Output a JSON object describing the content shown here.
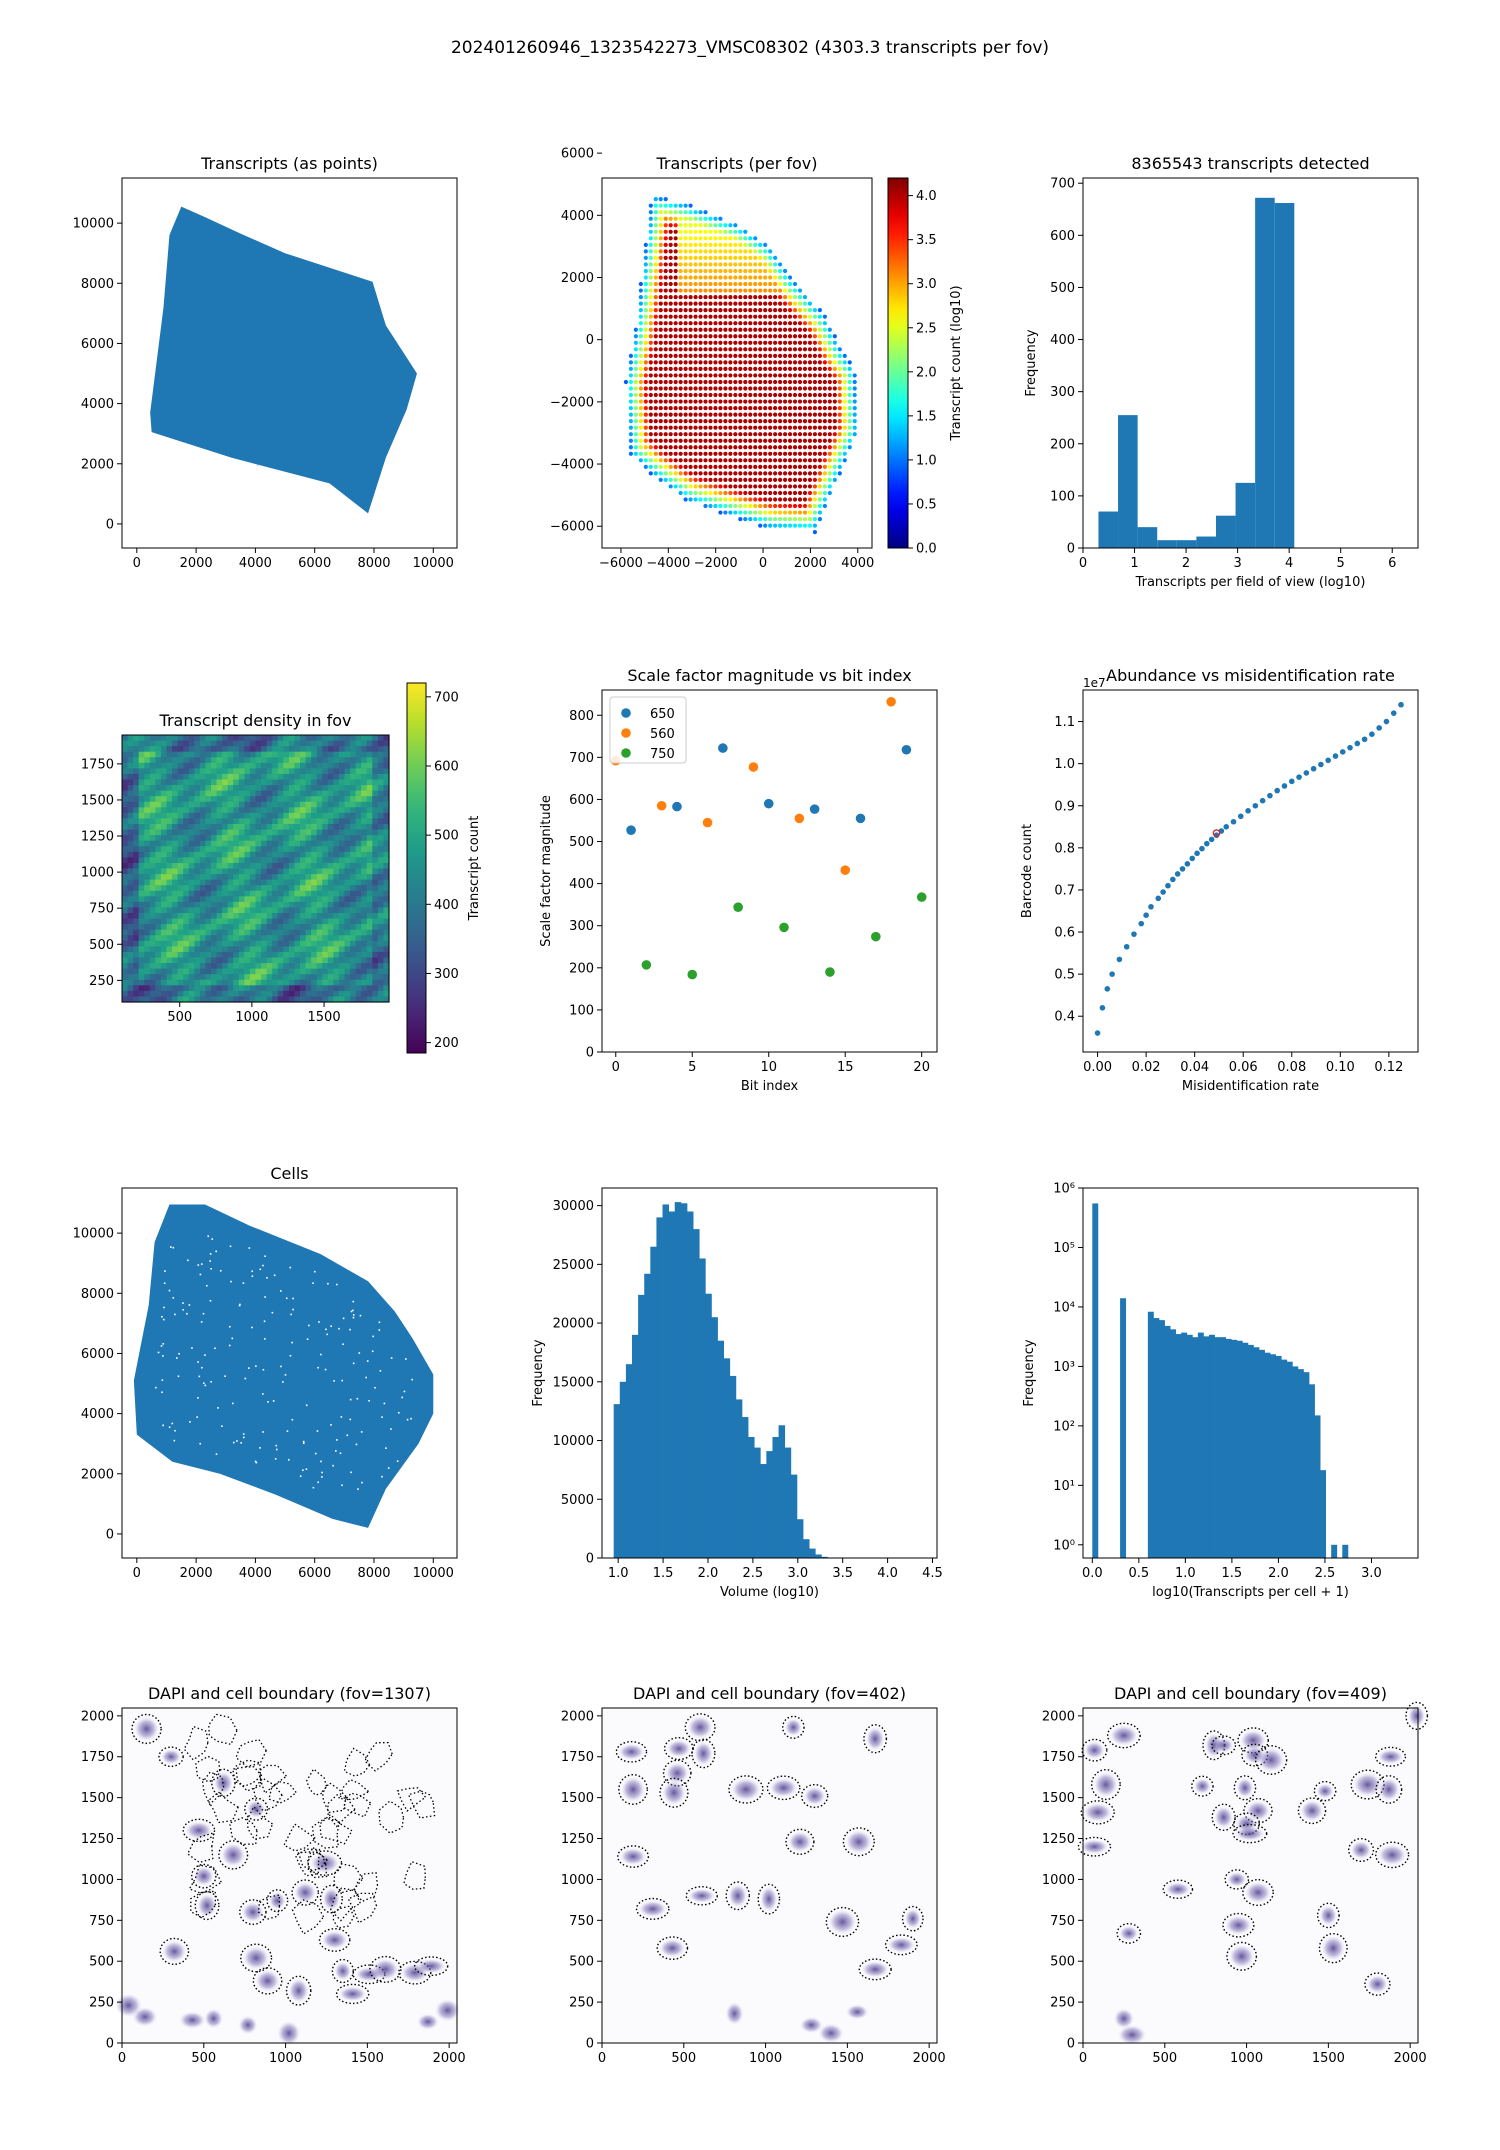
{
  "figure": {
    "title": "202401260946_1323542273_VMSC08302 (4303.3 transcripts per fov)",
    "colors": {
      "primary": "#1f77b4",
      "orange": "#ff7f0e",
      "green": "#2ca02c",
      "highlight": "#d62728",
      "dapi": "#4b3a8c"
    }
  },
  "chart_data": [
    {
      "id": "p1",
      "type": "scatter",
      "title": "Transcripts (as points)",
      "xlim": [
        -500,
        10800
      ],
      "ylim": [
        -800,
        11500
      ],
      "xticks": [
        0,
        2000,
        4000,
        6000,
        8000,
        10000
      ],
      "yticks": [
        0,
        2000,
        4000,
        6000,
        8000,
        10000
      ],
      "shape": [
        [
          1500,
          10550
        ],
        [
          2300,
          10200
        ],
        [
          3500,
          9650
        ],
        [
          5000,
          9000
        ],
        [
          7950,
          8050
        ],
        [
          8400,
          6600
        ],
        [
          9450,
          5000
        ],
        [
          9100,
          3800
        ],
        [
          8400,
          2200
        ],
        [
          7800,
          350
        ],
        [
          6500,
          1350
        ],
        [
          3200,
          2200
        ],
        [
          500,
          3050
        ],
        [
          450,
          3700
        ],
        [
          900,
          7200
        ],
        [
          1100,
          9600
        ],
        [
          1500,
          10550
        ]
      ],
      "color": "#1f77b4"
    },
    {
      "id": "p2",
      "type": "scatter",
      "title": "Transcripts (per fov)",
      "xlim": [
        -6800,
        4600
      ],
      "ylim": [
        -6700,
        5200
      ],
      "xticks": [
        -6000,
        -4000,
        -2000,
        0,
        2000,
        4000
      ],
      "yticks": [
        -6000,
        -4000,
        -2000,
        0,
        2000,
        4000,
        6000
      ],
      "colorbar": {
        "label": "Transcript count (log10)",
        "range": [
          0,
          4.2
        ],
        "ticks": [
          0.0,
          0.5,
          1.0,
          1.5,
          2.0,
          2.5,
          3.0,
          3.5,
          4.0
        ],
        "colormap": "jet"
      },
      "shape": [
        [
          -4700,
          4650
        ],
        [
          -3300,
          4400
        ],
        [
          -1000,
          3700
        ],
        [
          300,
          3000
        ],
        [
          1200,
          2000
        ],
        [
          2600,
          800
        ],
        [
          3300,
          -300
        ],
        [
          3900,
          -1000
        ],
        [
          4000,
          -3000
        ],
        [
          3200,
          -4400
        ],
        [
          2200,
          -6200
        ],
        [
          300,
          -6100
        ],
        [
          -3200,
          -5200
        ],
        [
          -4600,
          -4400
        ],
        [
          -5600,
          -3700
        ],
        [
          -5800,
          -1400
        ],
        [
          -5400,
          300
        ],
        [
          -5000,
          2800
        ],
        [
          -4700,
          4650
        ]
      ],
      "edge_value": 0.9,
      "interior_value": 4.0
    },
    {
      "id": "p3",
      "type": "bar",
      "title": "8365543 transcripts detected",
      "xlabel": "Transcripts per field of view (log10)",
      "ylabel": "Frequency",
      "xlim": [
        0,
        6.5
      ],
      "ylim": [
        0,
        710
      ],
      "xticks": [
        0,
        1,
        2,
        3,
        4,
        5,
        6
      ],
      "yticks": [
        0,
        100,
        200,
        300,
        400,
        500,
        600,
        700
      ],
      "bin_edges": [
        0.3,
        0.68,
        1.06,
        1.44,
        1.82,
        2.2,
        2.58,
        2.96,
        3.34,
        3.72,
        4.1
      ],
      "values": [
        70,
        255,
        40,
        15,
        15,
        22,
        62,
        125,
        672,
        662
      ]
    },
    {
      "id": "p4",
      "type": "heatmap",
      "title": "Transcript density in fov",
      "xlim": [
        100,
        1950
      ],
      "ylim": [
        100,
        1950
      ],
      "xticks": [
        500,
        1000,
        1500
      ],
      "yticks": [
        250,
        500,
        750,
        1000,
        1250,
        1500,
        1750
      ],
      "colorbar": {
        "label": "Transcript count",
        "range": [
          185,
          720
        ],
        "ticks": [
          200,
          300,
          400,
          500,
          600,
          700
        ],
        "colormap": "viridis"
      },
      "typical_value": 470
    },
    {
      "id": "p5",
      "type": "scatter",
      "title": "Scale factor magnitude vs bit index",
      "xlabel": "Bit index",
      "ylabel": "Scale factor magnitude",
      "xlim": [
        -0.9,
        21
      ],
      "ylim": [
        0,
        860
      ],
      "xticks": [
        0,
        5,
        10,
        15,
        20
      ],
      "yticks": [
        0,
        100,
        200,
        300,
        400,
        500,
        600,
        700,
        800
      ],
      "legend_position": "upper-left",
      "series": [
        {
          "name": "650",
          "color": "#1f77b4",
          "x": [
            1,
            4,
            7,
            10,
            13,
            16,
            19
          ],
          "y": [
            527,
            583,
            722,
            590,
            577,
            555,
            718
          ]
        },
        {
          "name": "560",
          "color": "#ff7f0e",
          "x": [
            0,
            3,
            6,
            9,
            12,
            15,
            18
          ],
          "y": [
            692,
            585,
            545,
            677,
            555,
            432,
            832
          ]
        },
        {
          "name": "750",
          "color": "#2ca02c",
          "x": [
            2,
            5,
            8,
            11,
            14,
            17,
            20
          ],
          "y": [
            207,
            184,
            344,
            296,
            190,
            274,
            368
          ]
        }
      ]
    },
    {
      "id": "p6",
      "type": "scatter",
      "title": "Abundance vs misidentification rate",
      "xlabel": "Misidentification rate",
      "ylabel": "Barcode count",
      "offset_label": "1e7",
      "xlim": [
        -0.006,
        0.132
      ],
      "ylim": [
        0.315,
        1.175
      ],
      "xticks": [
        0.0,
        0.02,
        0.04,
        0.06,
        0.08,
        0.1,
        0.12
      ],
      "yticks": [
        0.4,
        0.5,
        0.6,
        0.7,
        0.8,
        0.9,
        1.0,
        1.1
      ],
      "x": [
        0.0,
        0.002,
        0.004,
        0.006,
        0.009,
        0.012,
        0.015,
        0.018,
        0.02,
        0.022,
        0.025,
        0.027,
        0.029,
        0.031,
        0.033,
        0.035,
        0.037,
        0.039,
        0.041,
        0.043,
        0.045,
        0.047,
        0.049,
        0.051,
        0.053,
        0.056,
        0.059,
        0.062,
        0.065,
        0.068,
        0.071,
        0.074,
        0.077,
        0.08,
        0.083,
        0.086,
        0.089,
        0.092,
        0.095,
        0.098,
        0.101,
        0.104,
        0.107,
        0.11,
        0.113,
        0.116,
        0.119,
        0.122,
        0.125
      ],
      "y": [
        0.36,
        0.42,
        0.465,
        0.5,
        0.535,
        0.565,
        0.595,
        0.62,
        0.64,
        0.66,
        0.68,
        0.695,
        0.71,
        0.725,
        0.738,
        0.75,
        0.762,
        0.775,
        0.787,
        0.798,
        0.81,
        0.82,
        0.83,
        0.84,
        0.85,
        0.862,
        0.875,
        0.888,
        0.9,
        0.912,
        0.924,
        0.936,
        0.947,
        0.958,
        0.968,
        0.978,
        0.988,
        0.998,
        1.008,
        1.018,
        1.028,
        1.038,
        1.048,
        1.058,
        1.07,
        1.085,
        1.1,
        1.12,
        1.14
      ],
      "highlight": {
        "x": 0.049,
        "y": 0.835,
        "color": "#d62728"
      }
    },
    {
      "id": "p7",
      "type": "scatter",
      "title": "Cells",
      "xlim": [
        -500,
        10800
      ],
      "ylim": [
        -800,
        11500
      ],
      "xticks": [
        0,
        2000,
        4000,
        6000,
        8000,
        10000
      ],
      "yticks": [
        0,
        2000,
        4000,
        6000,
        8000,
        10000
      ],
      "shape": [
        [
          1100,
          10950
        ],
        [
          2300,
          10950
        ],
        [
          3800,
          10250
        ],
        [
          6200,
          9300
        ],
        [
          7800,
          8400
        ],
        [
          8700,
          7400
        ],
        [
          9300,
          6500
        ],
        [
          10000,
          5300
        ],
        [
          10000,
          4000
        ],
        [
          9500,
          3000
        ],
        [
          8400,
          1500
        ],
        [
          7800,
          200
        ],
        [
          6600,
          500
        ],
        [
          4700,
          1300
        ],
        [
          2800,
          2000
        ],
        [
          1200,
          2400
        ],
        [
          0,
          3300
        ],
        [
          -100,
          5100
        ],
        [
          400,
          7600
        ],
        [
          600,
          9700
        ],
        [
          1100,
          10950
        ]
      ],
      "color": "#1f77b4"
    },
    {
      "id": "p8",
      "type": "bar",
      "title": "",
      "xlabel": "Volume (log10)",
      "ylabel": "Frequency",
      "xlim": [
        0.82,
        4.55
      ],
      "ylim": [
        0,
        31500
      ],
      "xticks": [
        1.0,
        1.5,
        2.0,
        2.5,
        3.0,
        3.5,
        4.0,
        4.5
      ],
      "yticks": [
        0,
        5000,
        10000,
        15000,
        20000,
        25000,
        30000
      ],
      "bin_start": 0.95,
      "bin_width": 0.068,
      "values": [
        13100,
        15000,
        16500,
        19000,
        22400,
        24200,
        26500,
        29000,
        30100,
        29500,
        30300,
        30200,
        29500,
        28000,
        25500,
        22500,
        20500,
        18500,
        17000,
        15500,
        13500,
        12000,
        10300,
        9400,
        8000,
        9100,
        10300,
        11300,
        9400,
        7100,
        3300,
        1600,
        800,
        300,
        100,
        30,
        10
      ]
    },
    {
      "id": "p9",
      "type": "bar",
      "title": "",
      "yscale": "log",
      "xlabel": "log10(Transcripts per cell + 1)",
      "ylabel": "Frequency",
      "xlim": [
        -0.1,
        3.5
      ],
      "ylim": [
        0.6,
        1000000
      ],
      "xticks": [
        0.0,
        0.5,
        1.0,
        1.5,
        2.0,
        2.5,
        3.0
      ],
      "yticks": [
        1,
        10,
        100,
        1000,
        10000,
        100000,
        1000000
      ],
      "ytick_labels": [
        "10⁰",
        "10¹",
        "10²",
        "10³",
        "10⁴",
        "10⁵",
        "10⁶"
      ],
      "bin_start": 0.0,
      "bin_width": 0.0597,
      "values": [
        550000,
        0,
        0,
        0,
        0,
        14000,
        0,
        0,
        0,
        0,
        8300,
        6500,
        6000,
        4800,
        4200,
        3500,
        3700,
        3400,
        3100,
        3700,
        3200,
        3400,
        3100,
        3100,
        2900,
        2800,
        2700,
        2500,
        2300,
        2100,
        1900,
        1700,
        1600,
        1500,
        1300,
        1200,
        1000,
        900,
        800,
        500,
        150,
        18,
        0,
        1,
        0,
        1
      ],
      "y_min_shown": 0.6
    },
    {
      "id": "p10",
      "type": "heatmap",
      "title": "DAPI and cell boundary (fov=1307)",
      "xlim": [
        0,
        2048
      ],
      "ylim": [
        0,
        2048
      ],
      "xticks": [
        0,
        500,
        1000,
        1500,
        2000
      ],
      "yticks": [
        0,
        250,
        500,
        750,
        1000,
        1250,
        1500,
        1750,
        2000
      ],
      "nuclei": [
        [
          150,
          1920
        ],
        [
          300,
          1750
        ],
        [
          620,
          1590
        ],
        [
          820,
          1430
        ],
        [
          470,
          1300
        ],
        [
          680,
          1150
        ],
        [
          1240,
          1100
        ],
        [
          500,
          1020
        ],
        [
          1120,
          920
        ],
        [
          520,
          840
        ],
        [
          1280,
          880
        ],
        [
          950,
          870
        ],
        [
          800,
          800
        ],
        [
          320,
          560
        ],
        [
          1300,
          630
        ],
        [
          1510,
          420
        ],
        [
          1350,
          440
        ],
        [
          1410,
          300
        ],
        [
          1610,
          450
        ],
        [
          1790,
          430
        ],
        [
          820,
          520
        ],
        [
          890,
          380
        ],
        [
          1080,
          320
        ],
        [
          40,
          230
        ],
        [
          140,
          160
        ],
        [
          430,
          140
        ],
        [
          560,
          150
        ],
        [
          770,
          110
        ],
        [
          1020,
          60
        ],
        [
          1870,
          130
        ],
        [
          1990,
          200
        ],
        [
          1890,
          470
        ]
      ],
      "cells_dense": true
    },
    {
      "id": "p11",
      "type": "heatmap",
      "title": "DAPI and cell boundary (fov=402)",
      "xlim": [
        0,
        2048
      ],
      "ylim": [
        0,
        2048
      ],
      "xticks": [
        0,
        500,
        1000,
        1500,
        2000
      ],
      "yticks": [
        0,
        250,
        500,
        750,
        1000,
        1250,
        1500,
        1750,
        2000
      ],
      "nuclei": [
        [
          600,
          1930
        ],
        [
          1170,
          1930
        ],
        [
          1670,
          1860
        ],
        [
          180,
          1780
        ],
        [
          470,
          1800
        ],
        [
          620,
          1770
        ],
        [
          460,
          1650
        ],
        [
          880,
          1550
        ],
        [
          1110,
          1560
        ],
        [
          1300,
          1510
        ],
        [
          190,
          1550
        ],
        [
          440,
          1530
        ],
        [
          1570,
          1230
        ],
        [
          190,
          1140
        ],
        [
          1210,
          1230
        ],
        [
          310,
          820
        ],
        [
          610,
          900
        ],
        [
          830,
          900
        ],
        [
          1020,
          880
        ],
        [
          1900,
          760
        ],
        [
          1470,
          740
        ],
        [
          430,
          580
        ],
        [
          1830,
          600
        ],
        [
          1670,
          450
        ],
        [
          810,
          180
        ],
        [
          1280,
          110
        ],
        [
          1560,
          190
        ],
        [
          1400,
          60
        ]
      ],
      "cells_dense": false
    },
    {
      "id": "p12",
      "type": "heatmap",
      "title": "DAPI and cell boundary (fov=409)",
      "xlim": [
        0,
        2048
      ],
      "ylim": [
        0,
        2048
      ],
      "xticks": [
        0,
        500,
        1000,
        1500,
        2000
      ],
      "yticks": [
        0,
        250,
        500,
        750,
        1000,
        1250,
        1500,
        1750,
        2000
      ],
      "nuclei": [
        [
          1040,
          1850
        ],
        [
          250,
          1880
        ],
        [
          800,
          1820
        ],
        [
          860,
          1820
        ],
        [
          1050,
          1760
        ],
        [
          1150,
          1730
        ],
        [
          2040,
          2000
        ],
        [
          1880,
          1750
        ],
        [
          70,
          1790
        ],
        [
          140,
          1580
        ],
        [
          730,
          1570
        ],
        [
          990,
          1560
        ],
        [
          1480,
          1540
        ],
        [
          1740,
          1580
        ],
        [
          1870,
          1550
        ],
        [
          90,
          1410
        ],
        [
          1400,
          1420
        ],
        [
          1070,
          1420
        ],
        [
          1000,
          1340
        ],
        [
          860,
          1380
        ],
        [
          1020,
          1280
        ],
        [
          70,
          1200
        ],
        [
          1700,
          1180
        ],
        [
          1890,
          1150
        ],
        [
          580,
          940
        ],
        [
          940,
          1000
        ],
        [
          1070,
          920
        ],
        [
          1500,
          780
        ],
        [
          280,
          670
        ],
        [
          950,
          720
        ],
        [
          1530,
          580
        ],
        [
          970,
          530
        ],
        [
          1800,
          360
        ],
        [
          250,
          150
        ],
        [
          300,
          50
        ]
      ],
      "cells_dense": false
    }
  ]
}
